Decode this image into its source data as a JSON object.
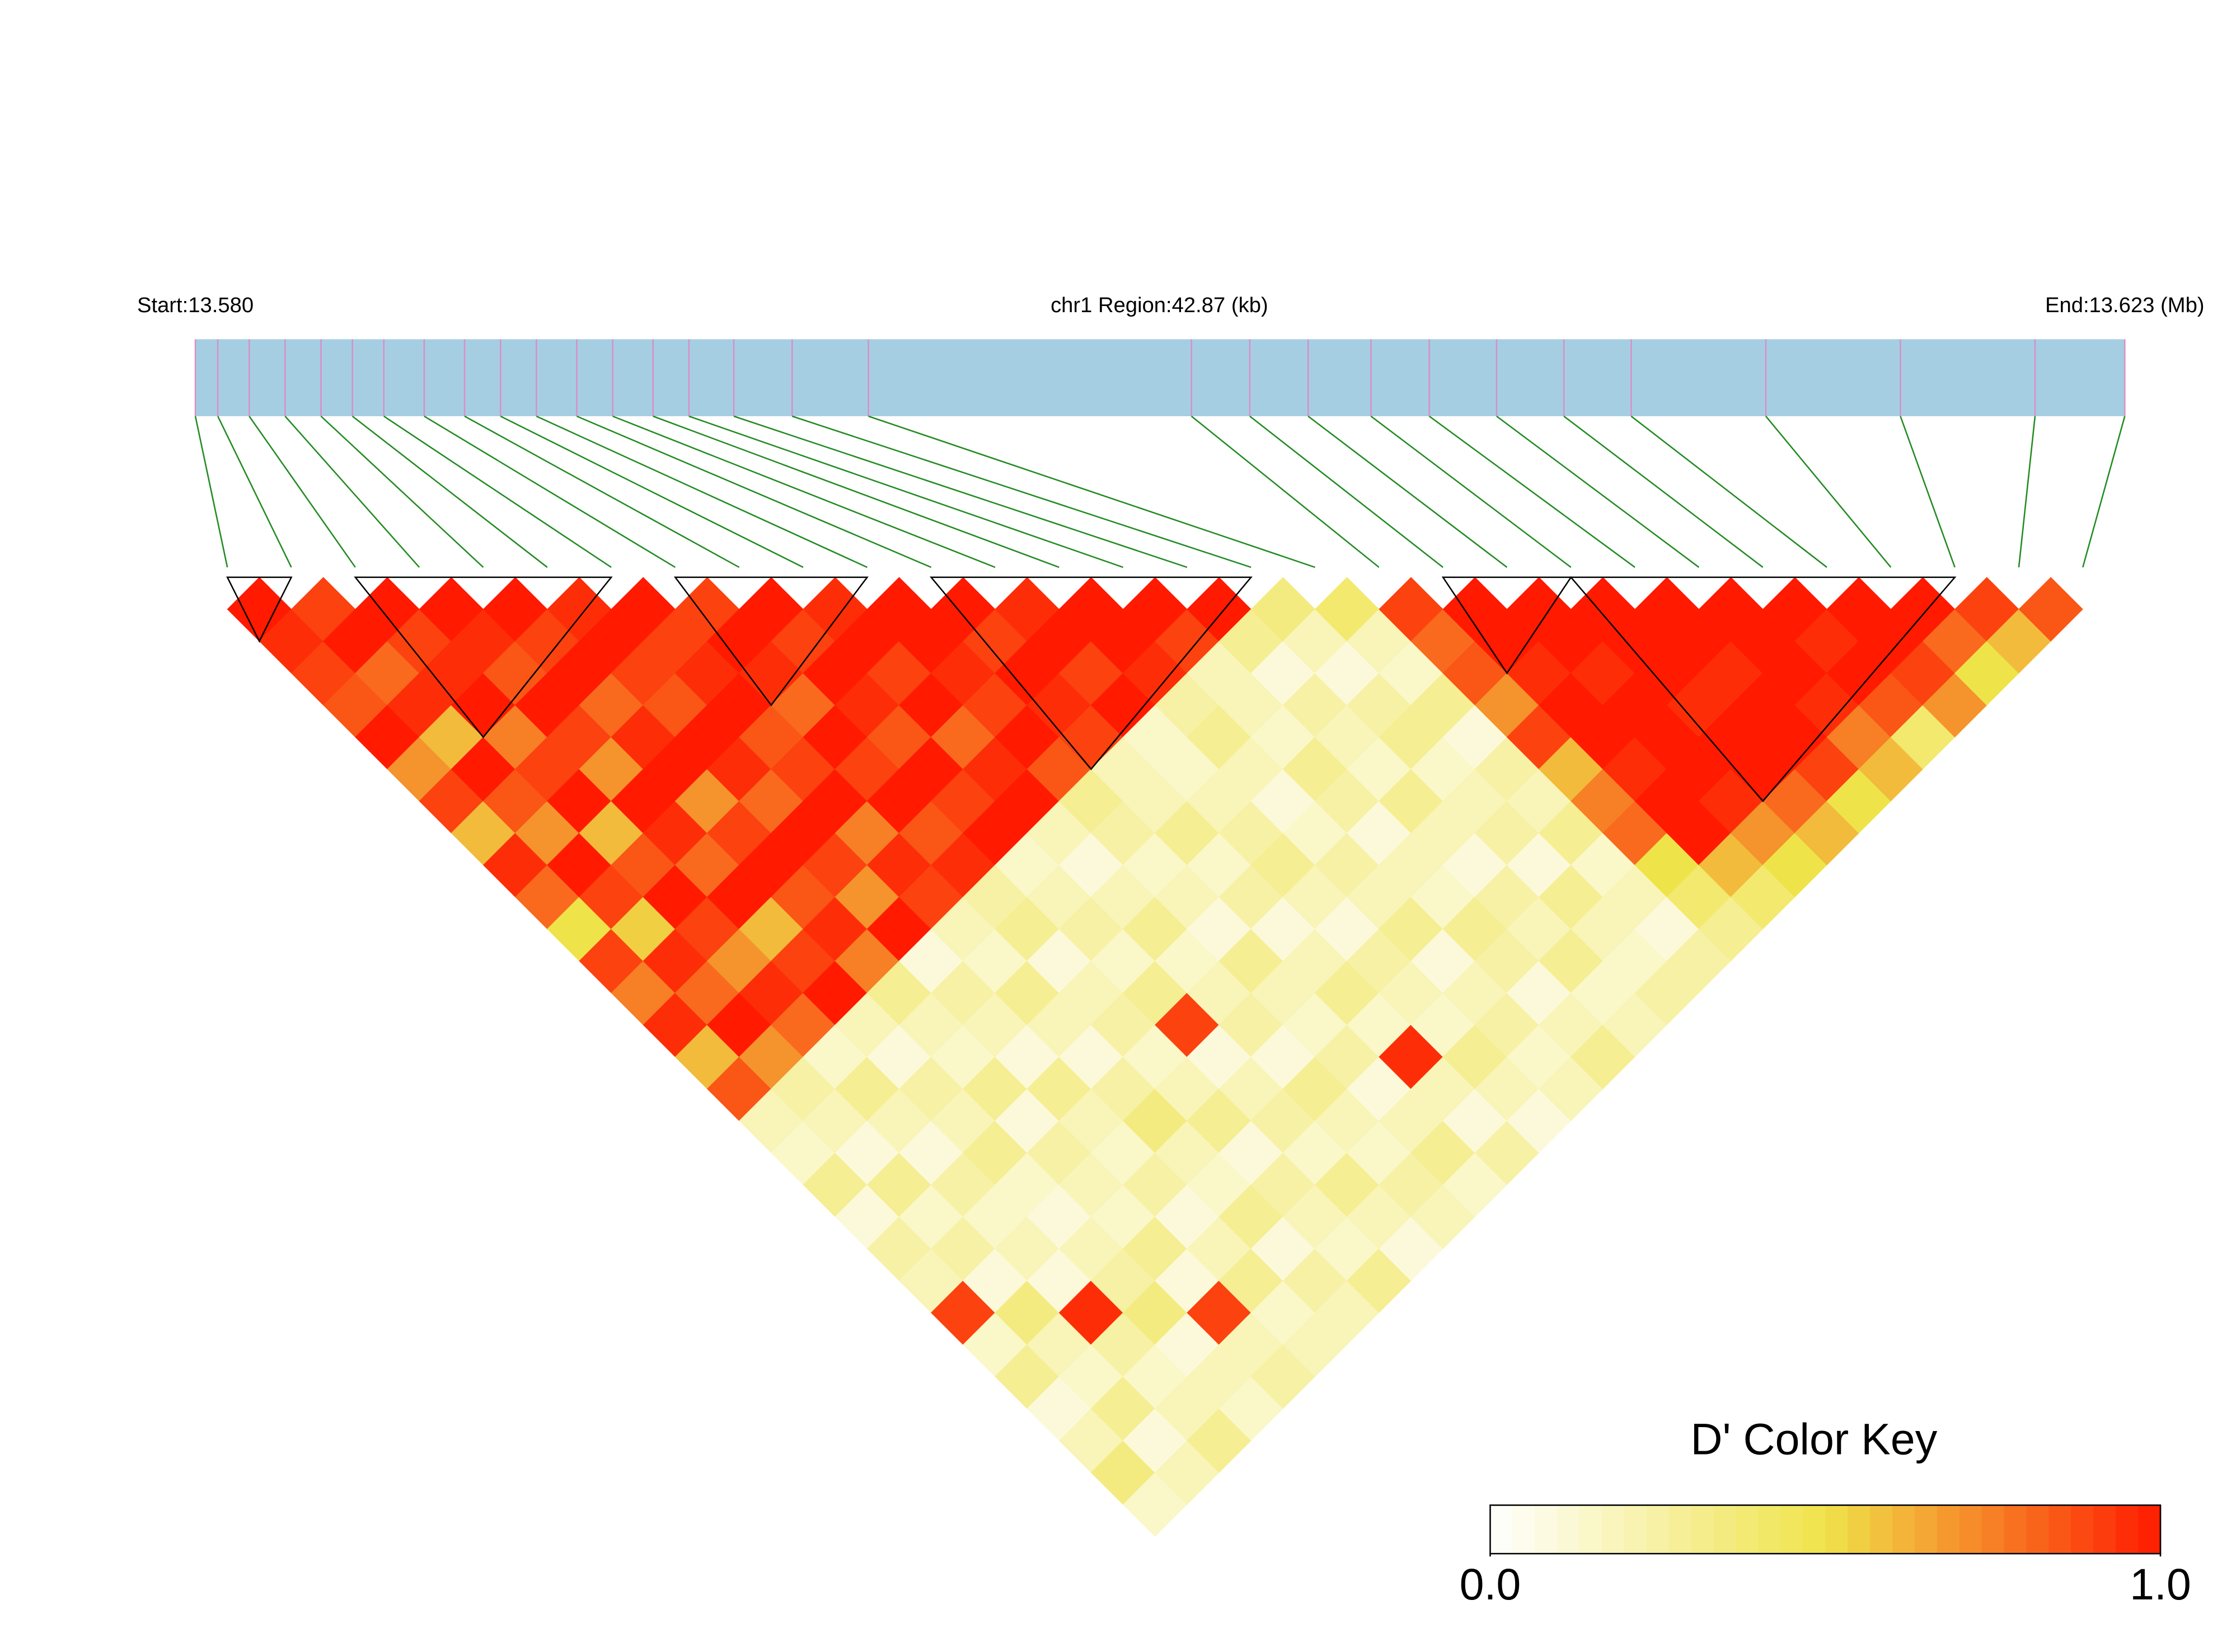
{
  "chart_data": {
    "type": "ld_heatmap",
    "start_label": "Start:13.580",
    "region_label": "chr1 Region:42.87 (kb)",
    "end_label": "End:13.623 (Mb)",
    "xlim": [
      13.58,
      13.623
    ],
    "snp_positions": [
      13.58,
      13.5805,
      13.5812,
      13.582,
      13.5828,
      13.5835,
      13.5842,
      13.5851,
      13.586,
      13.5868,
      13.5876,
      13.5885,
      13.5893,
      13.5902,
      13.591,
      13.592,
      13.5933,
      13.595,
      13.6022,
      13.6035,
      13.6048,
      13.6062,
      13.6075,
      13.609,
      13.6105,
      13.612,
      13.615,
      13.618,
      13.621,
      13.623
    ],
    "track_color": "#a6cee3",
    "marker_color": "#d98fc8",
    "link_color": "#228b22",
    "ld": [
      [
        1,
        0.95,
        0.9,
        0.85,
        1,
        0.7,
        0.9,
        0.6,
        0.95,
        0.8,
        0.5,
        0.9,
        0.75,
        0.95,
        0.6,
        0.85,
        0.2,
        0.15,
        0.3,
        0.1,
        0.25,
        0.2,
        0.9,
        0.15,
        0.3,
        0.1,
        0.2,
        0.35,
        0.15
      ],
      [
        0.9,
        1,
        0.8,
        0.95,
        0.6,
        1,
        0.85,
        0.7,
        1,
        0.9,
        0.55,
        0.95,
        0.8,
        1,
        0.7,
        0.25,
        0.2,
        0.1,
        0.3,
        0.15,
        0.25,
        0.1,
        0.35,
        0.2,
        0.15,
        0.3,
        0.1,
        0.2
      ],
      [
        1,
        0.9,
        0.95,
        1,
        0.75,
        0.9,
        1,
        0.6,
        0.85,
        1,
        0.9,
        0.7,
        0.95,
        0.8,
        0.15,
        0.3,
        0.2,
        0.1,
        0.25,
        0.15,
        0.2,
        0.1,
        0.95,
        0.25,
        0.15,
        0.2,
        0.3
      ],
      [
        1,
        0.95,
        0.85,
        1,
        0.9,
        0.7,
        1,
        0.95,
        0.8,
        1,
        0.6,
        0.9,
        1,
        0.2,
        0.1,
        0.25,
        0.2,
        0.3,
        0.15,
        0.1,
        0.2,
        0.25,
        0.35,
        0.1,
        0.2,
        0.15
      ],
      [
        1,
        0.9,
        1,
        0.8,
        0.95,
        1,
        0.7,
        0.9,
        1,
        0.85,
        0.95,
        0.75,
        0.3,
        0.2,
        0.15,
        0.3,
        0.1,
        0.25,
        0.2,
        0.15,
        0.3,
        0.1,
        0.9,
        0.2,
        0.25
      ],
      [
        0.95,
        1,
        0.9,
        0.85,
        1,
        0.95,
        0.8,
        1,
        0.9,
        0.7,
        1,
        0.1,
        0.25,
        0.2,
        0.1,
        0.3,
        0.2,
        0.15,
        0.25,
        0.1,
        0.2,
        0.3,
        0.15,
        0.2
      ],
      [
        1,
        0.9,
        0.95,
        1,
        0.85,
        0.9,
        1,
        0.75,
        0.95,
        0.9,
        0.2,
        0.15,
        0.3,
        0.2,
        0.1,
        0.25,
        0.35,
        0.2,
        0.15,
        0.3,
        0.1,
        0.25,
        0.2
      ],
      [
        0.9,
        1,
        0.95,
        0.8,
        1,
        0.9,
        1,
        0.85,
        0.95,
        0.25,
        0.3,
        0.1,
        0.2,
        0.25,
        0.15,
        0.2,
        0.3,
        0.1,
        0.25,
        0.2,
        0.15,
        0.3
      ],
      [
        1,
        0.9,
        1,
        0.95,
        0.85,
        1,
        0.9,
        1,
        0.15,
        0.2,
        0.25,
        0.15,
        0.3,
        0.9,
        0.1,
        0.2,
        0.25,
        0.15,
        0.3,
        0.2,
        0.1
      ],
      [
        0.95,
        1,
        0.9,
        1,
        0.8,
        0.95,
        1,
        0.2,
        0.1,
        0.2,
        0.3,
        0.15,
        0.2,
        0.25,
        0.1,
        0.3,
        0.2,
        0.15,
        0.25,
        0.2
      ],
      [
        1,
        1,
        0.95,
        0.9,
        1,
        0.85,
        0.3,
        0.25,
        0.15,
        0.2,
        0.1,
        0.3,
        0.2,
        0.15,
        0.25,
        0.1,
        0.2,
        0.3,
        0.15
      ],
      [
        1,
        0.9,
        1,
        0.95,
        0.9,
        0.2,
        0.2,
        0.3,
        0.15,
        0.25,
        0.1,
        0.2,
        0.3,
        0.15,
        0.95,
        0.2,
        0.1,
        0.25
      ],
      [
        0.95,
        1,
        0.9,
        1,
        0.15,
        0.15,
        0.2,
        0.25,
        0.3,
        0.2,
        0.1,
        0.25,
        0.2,
        0.15,
        0.3,
        0.2,
        0.1
      ],
      [
        1,
        1,
        0.95,
        0.25,
        0.3,
        0.2,
        0.1,
        0.15,
        0.25,
        0.2,
        0.3,
        0.1,
        0.2,
        0.25,
        0.15,
        0.2
      ],
      [
        1,
        0.9,
        0.2,
        0.2,
        0.15,
        0.3,
        0.25,
        0.1,
        0.2,
        0.15,
        0.3,
        0.25,
        0.1,
        0.2,
        0.3
      ],
      [
        1,
        0.3,
        0.1,
        0.25,
        0.2,
        0.15,
        0.3,
        0.2,
        0.1,
        0.25,
        0.2,
        0.3,
        0.15,
        0.2
      ],
      [
        0.35,
        0.2,
        0.1,
        0.25,
        0.3,
        0.15,
        0.2,
        0.25,
        0.1,
        0.3,
        0.2,
        0.15,
        0.25
      ],
      [
        0.4,
        0.2,
        0.15,
        0.3,
        0.1,
        0.25,
        0.2,
        0.3,
        0.15,
        0.2,
        0.1,
        0.25
      ],
      [
        0.9,
        0.8,
        0.85,
        0.7,
        0.9,
        0.6,
        0.75,
        0.8,
        0.5,
        0.4,
        0.3
      ],
      [
        1,
        1,
        0.95,
        1,
        1,
        0.95,
        1,
        1,
        0.6,
        0.4
      ],
      [
        1,
        1,
        0.95,
        1,
        1,
        1,
        0.95,
        0.7,
        0.5
      ],
      [
        1,
        1,
        1,
        0.95,
        1,
        1,
        0.8,
        0.6
      ],
      [
        1,
        1,
        0.95,
        1,
        1,
        0.9,
        0.5
      ],
      [
        1,
        1,
        1,
        0.95,
        0.75,
        0.6
      ],
      [
        1,
        0.95,
        1,
        0.85,
        0.4
      ],
      [
        1,
        1,
        0.9,
        0.7
      ],
      [
        1,
        0.8,
        0.5
      ],
      [
        0.9,
        0.6
      ],
      [
        0.85
      ]
    ],
    "blocks": [
      [
        0,
        1
      ],
      [
        2,
        6
      ],
      [
        7,
        10
      ],
      [
        11,
        16
      ],
      [
        19,
        21
      ],
      [
        21,
        27
      ]
    ],
    "legend_title": "D' Color Key",
    "clim": [
      0,
      1
    ],
    "colorbar_ticks": [
      {
        "value": 0,
        "label": "0.0"
      },
      {
        "value": 1,
        "label": "1.0"
      }
    ],
    "colors": [
      "#ffffff",
      "#efe34a",
      "#ff1a00"
    ]
  }
}
